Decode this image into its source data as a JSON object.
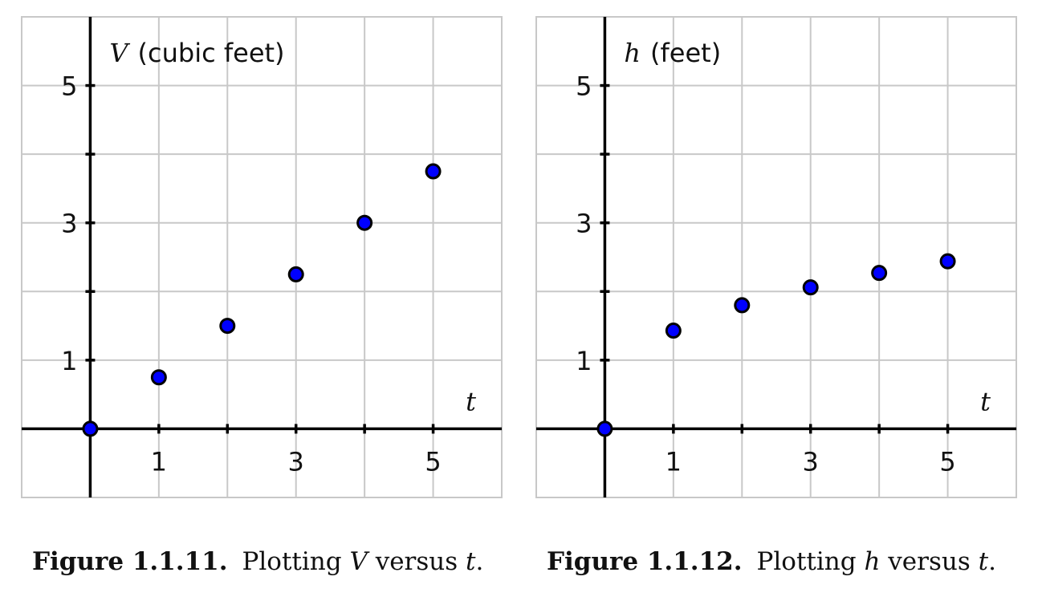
{
  "chart_data": [
    {
      "type": "scatter",
      "ylabel_var": "V",
      "ylabel_unit": "(cubic feet)",
      "xlabel": "t",
      "xlim": [
        -1,
        6
      ],
      "ylim": [
        -1,
        6
      ],
      "xticks": [
        1,
        2,
        3,
        4,
        5
      ],
      "xtick_labels": [
        "1",
        "",
        "3",
        "",
        "5"
      ],
      "yticks": [
        1,
        2,
        3,
        4,
        5
      ],
      "ytick_labels": [
        "1",
        "",
        "3",
        "",
        "5"
      ],
      "grid": true,
      "point_color": "#0000ff",
      "points": [
        {
          "x": 0,
          "y": 0
        },
        {
          "x": 1,
          "y": 0.75
        },
        {
          "x": 2,
          "y": 1.5
        },
        {
          "x": 3,
          "y": 2.25
        },
        {
          "x": 4,
          "y": 3.0
        },
        {
          "x": 5,
          "y": 3.75
        }
      ]
    },
    {
      "type": "scatter",
      "ylabel_var": "h",
      "ylabel_unit": "(feet)",
      "xlabel": "t",
      "xlim": [
        -1,
        6
      ],
      "ylim": [
        -1,
        6
      ],
      "xticks": [
        1,
        2,
        3,
        4,
        5
      ],
      "xtick_labels": [
        "1",
        "",
        "3",
        "",
        "5"
      ],
      "yticks": [
        1,
        2,
        3,
        4,
        5
      ],
      "ytick_labels": [
        "1",
        "",
        "3",
        "",
        "5"
      ],
      "grid": true,
      "point_color": "#0000ff",
      "points": [
        {
          "x": 0,
          "y": 0
        },
        {
          "x": 1,
          "y": 1.43
        },
        {
          "x": 2,
          "y": 1.8
        },
        {
          "x": 3,
          "y": 2.06
        },
        {
          "x": 4,
          "y": 2.27
        },
        {
          "x": 5,
          "y": 2.44
        }
      ]
    }
  ],
  "captions": [
    {
      "label": "Figure 1.1.11.",
      "pre": "Plotting ",
      "var": "V",
      "mid": " versus ",
      "var2": "t",
      "post": "."
    },
    {
      "label": "Figure 1.1.12.",
      "pre": "Plotting ",
      "var": "h",
      "mid": " versus ",
      "var2": "t",
      "post": "."
    }
  ]
}
